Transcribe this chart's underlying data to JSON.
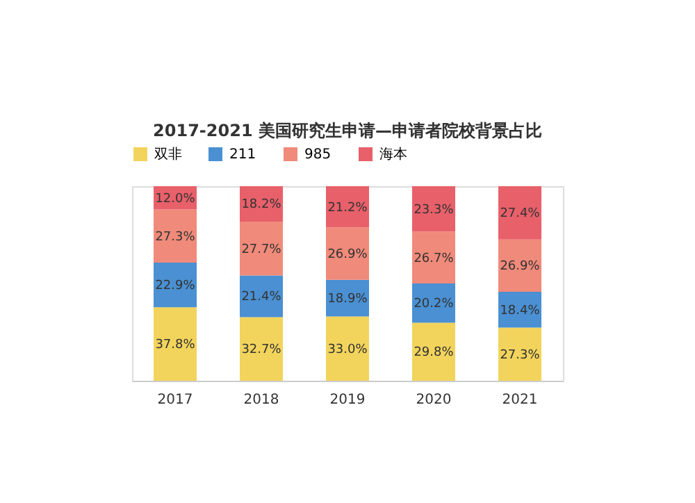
{
  "chart_data": {
    "type": "bar",
    "title": "2017-2021 美国研究生申请—申请者院校背景占比",
    "categories": [
      "2017",
      "2018",
      "2019",
      "2020",
      "2021"
    ],
    "stacked": true,
    "tick_labels": "x",
    "legend": "top",
    "grid": false,
    "series": [
      {
        "name": "双非",
        "color": "#f2d45c",
        "values": [
          37.8,
          32.7,
          33.0,
          29.8,
          27.3
        ],
        "value_labels": [
          "37.8%",
          "32.7%",
          "33.0%",
          "29.8%",
          "27.3%"
        ]
      },
      {
        "name": "211",
        "color": "#4a90d2",
        "values": [
          22.9,
          21.4,
          18.9,
          20.2,
          18.4
        ],
        "value_labels": [
          "22.9%",
          "21.4%",
          "18.9%",
          "20.2%",
          "18.4%"
        ]
      },
      {
        "name": "985",
        "color": "#f08a7a",
        "values": [
          27.3,
          27.7,
          26.9,
          26.7,
          26.9
        ],
        "value_labels": [
          "27.3%",
          "27.7%",
          "26.9%",
          "26.7%",
          "26.9%"
        ]
      },
      {
        "name": "海本",
        "color": "#e8606a",
        "values": [
          12.0,
          18.2,
          21.2,
          23.3,
          27.4
        ],
        "value_labels": [
          "12.0%",
          "18.2%",
          "21.2%",
          "23.3%",
          "27.4%"
        ]
      }
    ]
  }
}
